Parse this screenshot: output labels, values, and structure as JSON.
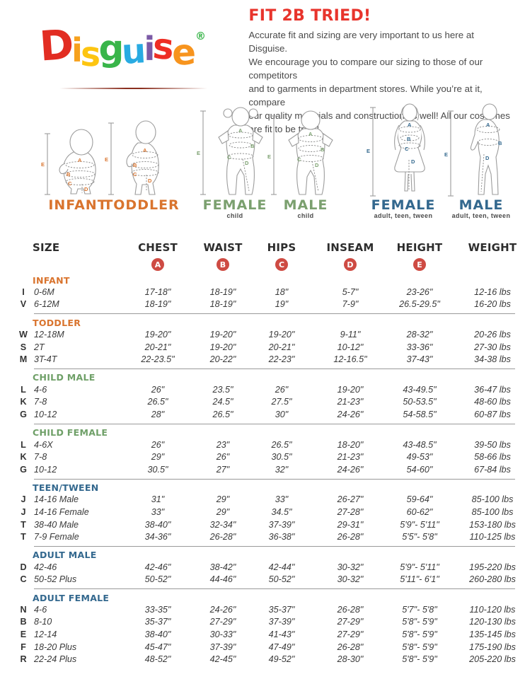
{
  "logo": {
    "letters": [
      {
        "ch": "D",
        "color": "#E22D22"
      },
      {
        "ch": "i",
        "color": "#F6A11E"
      },
      {
        "ch": "s",
        "color": "#FDC511"
      },
      {
        "ch": "g",
        "color": "#39B54A"
      },
      {
        "ch": "u",
        "color": "#29ABE2"
      },
      {
        "ch": "i",
        "color": "#7B5AA6"
      },
      {
        "ch": "s",
        "color": "#EE2D24"
      },
      {
        "ch": "e",
        "color": "#F7941E"
      }
    ],
    "registered": {
      "ch": "®",
      "color": "#39B54A"
    }
  },
  "intro": {
    "title": "FIT 2B TRIED!",
    "title_color": "#E8342C",
    "lines": [
      "Accurate fit and sizing are very important to us here at Disguise.",
      "We encourage you to compare our sizing to those of our competitors",
      "and to garments in department stores. While you’re at it, compare",
      "our quality materials and construction as well! All our costumes",
      "are fit to be tried!"
    ]
  },
  "figures": [
    {
      "label": "INFANT",
      "sublabel": "",
      "color": "#D9742E",
      "letters": [
        "A",
        "B",
        "C",
        "D",
        "E"
      ]
    },
    {
      "label": "TODDLER",
      "sublabel": "",
      "color": "#D9742E",
      "letters": [
        "A",
        "B",
        "C",
        "D",
        "E"
      ]
    },
    {
      "label": "FEMALE",
      "sublabel": "child",
      "color": "#7BA06F",
      "letters": [
        "A",
        "B",
        "C",
        "D",
        "E"
      ]
    },
    {
      "label": "MALE",
      "sublabel": "child",
      "color": "#7BA06F",
      "letters": [
        "A",
        "B",
        "C",
        "D",
        "E"
      ]
    },
    {
      "label": "FEMALE",
      "sublabel": "adult, teen, tween",
      "color": "#33688E",
      "letters": [
        "A",
        "B",
        "C",
        "D",
        "E"
      ]
    },
    {
      "label": "MALE",
      "sublabel": "adult, teen, tween",
      "color": "#33688E",
      "letters": [
        "A",
        "B",
        "D",
        "E"
      ]
    }
  ],
  "table": {
    "columns": [
      "SIZE",
      "CHEST",
      "WAIST",
      "HIPS",
      "INSEAM",
      "HEIGHT",
      "WEIGHT"
    ],
    "badges": [
      "A",
      "B",
      "C",
      "D",
      "E"
    ],
    "badge_color": "#CE4B43",
    "sections": [
      {
        "label": "INFANT",
        "color": "#D9742E",
        "rows": [
          [
            "I",
            "0-6M",
            "17-18\"",
            "18-19\"",
            "18\"",
            "5-7\"",
            "23-26\"",
            "12-16 lbs"
          ],
          [
            "V",
            "6-12M",
            "18-19\"",
            "18-19\"",
            "19\"",
            "7-9\"",
            "26.5-29.5\"",
            "16-20 lbs"
          ]
        ]
      },
      {
        "label": "TODDLER",
        "color": "#D9742E",
        "rows": [
          [
            "W",
            "12-18M",
            "19-20\"",
            "19-20\"",
            "19-20\"",
            "9-11\"",
            "28-32\"",
            "20-26 lbs"
          ],
          [
            "S",
            "2T",
            "20-21\"",
            "19-20\"",
            "20-21\"",
            "10-12\"",
            "33-36\"",
            "27-30 lbs"
          ],
          [
            "M",
            "3T-4T",
            "22-23.5\"",
            "20-22\"",
            "22-23\"",
            "12-16.5\"",
            "37-43\"",
            "34-38 lbs"
          ]
        ]
      },
      {
        "label": "CHILD MALE",
        "color": "#6FA068",
        "rows": [
          [
            "L",
            "4-6",
            "26\"",
            "23.5\"",
            "26\"",
            "19-20\"",
            "43-49.5\"",
            "36-47 lbs"
          ],
          [
            "K",
            "7-8",
            "26.5\"",
            "24.5\"",
            "27.5\"",
            "21-23\"",
            "50-53.5\"",
            "48-60 lbs"
          ],
          [
            "G",
            "10-12",
            "28\"",
            "26.5\"",
            "30\"",
            "24-26\"",
            "54-58.5\"",
            "60-87 lbs"
          ]
        ]
      },
      {
        "label": "CHILD FEMALE",
        "color": "#6FA068",
        "rows": [
          [
            "L",
            "4-6X",
            "26\"",
            "23\"",
            "26.5\"",
            "18-20\"",
            "43-48.5\"",
            "39-50 lbs"
          ],
          [
            "K",
            "7-8",
            "29\"",
            "26\"",
            "30.5\"",
            "21-23\"",
            "49-53\"",
            "58-66 lbs"
          ],
          [
            "G",
            "10-12",
            "30.5\"",
            "27\"",
            "32\"",
            "24-26\"",
            "54-60\"",
            "67-84 lbs"
          ]
        ]
      },
      {
        "label": "TEEN/TWEEN",
        "color": "#33688E",
        "rows": [
          [
            "J",
            "14-16 Male",
            "31\"",
            "29\"",
            "33\"",
            "26-27\"",
            "59-64\"",
            "85-100 lbs"
          ],
          [
            "J",
            "14-16 Female",
            "33\"",
            "29\"",
            "34.5\"",
            "27-28\"",
            "60-62\"",
            "85-100 lbs"
          ],
          [
            "T",
            "38-40 Male",
            "38-40\"",
            "32-34\"",
            "37-39\"",
            "29-31\"",
            "5'9\"- 5'11\"",
            "153-180 lbs"
          ],
          [
            "T",
            "7-9 Female",
            "34-36\"",
            "26-28\"",
            "36-38\"",
            "26-28\"",
            "5'5\"- 5'8\"",
            "110-125 lbs"
          ]
        ]
      },
      {
        "label": "ADULT MALE",
        "color": "#33688E",
        "rows": [
          [
            "D",
            "42-46",
            "42-46\"",
            "38-42\"",
            "42-44\"",
            "30-32\"",
            "5'9\"- 5'11\"",
            "195-220 lbs"
          ],
          [
            "C",
            "50-52 Plus",
            "50-52\"",
            "44-46\"",
            "50-52\"",
            "30-32\"",
            "5'11\"- 6'1\"",
            "260-280 lbs"
          ]
        ]
      },
      {
        "label": "ADULT FEMALE",
        "color": "#33688E",
        "rows": [
          [
            "N",
            "4-6",
            "33-35\"",
            "24-26\"",
            "35-37\"",
            "26-28\"",
            "5'7\"- 5'8\"",
            "110-120 lbs"
          ],
          [
            "B",
            "8-10",
            "35-37\"",
            "27-29\"",
            "37-39\"",
            "27-29\"",
            "5'8\"- 5'9\"",
            "120-130 lbs"
          ],
          [
            "E",
            "12-14",
            "38-40\"",
            "30-33\"",
            "41-43\"",
            "27-29\"",
            "5'8\"- 5'9\"",
            "135-145 lbs"
          ],
          [
            "F",
            "18-20 Plus",
            "45-47\"",
            "37-39\"",
            "47-49\"",
            "26-28\"",
            "5'8\"- 5'9\"",
            "175-190 lbs"
          ],
          [
            "R",
            "22-24 Plus",
            "48-52\"",
            "42-45\"",
            "49-52\"",
            "28-30\"",
            "5'8\"- 5'9\"",
            "205-220 lbs"
          ]
        ]
      }
    ]
  }
}
